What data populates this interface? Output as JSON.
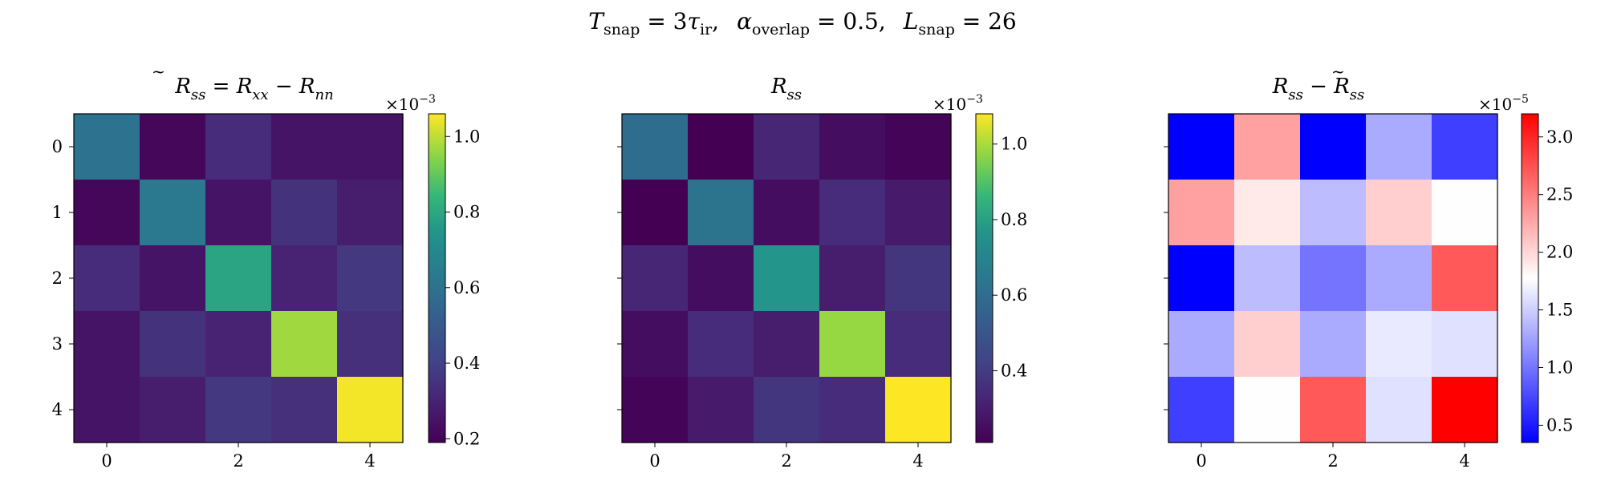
{
  "figure": {
    "suptitle_parts": {
      "T": "T",
      "snap": "snap",
      "eq1": " = 3",
      "tau": "τ",
      "ir": "ir",
      "comma1": ",",
      "alpha": "α",
      "overlap": "overlap",
      "eq2": " = 0.5,",
      "L": "L",
      "snap2": "snap",
      "eq3": " = 26"
    }
  },
  "chart_data": [
    {
      "type": "heatmap",
      "title_parts": {
        "R": "R",
        "tilde": "~",
        "sub_ss": "ss",
        "eq": " = ",
        "R2": "R",
        "sub_xx": "xx",
        "minus": " − ",
        "R3": "R",
        "sub_nn": "nn"
      },
      "title": "R̃_ss = R_xx − R_nn",
      "cmap": "viridis",
      "x_ticks": [
        "0",
        "2",
        "4"
      ],
      "y_ticks": [
        "0",
        "1",
        "2",
        "3",
        "4"
      ],
      "show_y_tick_labels": true,
      "vmin": 0.19,
      "vmax": 1.06,
      "colorbar_ticks": [
        "0.2",
        "0.4",
        "0.6",
        "0.8",
        "1.0"
      ],
      "colorbar_tick_values": [
        0.2,
        0.4,
        0.6,
        0.8,
        1.0
      ],
      "offset_label": "×10",
      "offset_exp": "−3",
      "values": [
        [
          0.6,
          0.21,
          0.33,
          0.25,
          0.25
        ],
        [
          0.21,
          0.63,
          0.25,
          0.35,
          0.28
        ],
        [
          0.33,
          0.25,
          0.79,
          0.3,
          0.37
        ],
        [
          0.25,
          0.35,
          0.3,
          0.97,
          0.34
        ],
        [
          0.25,
          0.28,
          0.37,
          0.34,
          1.05
        ]
      ]
    },
    {
      "type": "heatmap",
      "title_parts": {
        "R": "R",
        "sub_ss": "ss"
      },
      "title": "R_ss",
      "cmap": "viridis",
      "x_ticks": [
        "0",
        "2",
        "4"
      ],
      "y_ticks": [
        "0",
        "1",
        "2",
        "3",
        "4"
      ],
      "show_y_tick_labels": false,
      "vmin": 0.21,
      "vmax": 1.08,
      "colorbar_ticks": [
        "0.4",
        "0.6",
        "0.8",
        "1.0"
      ],
      "colorbar_tick_values": [
        0.4,
        0.6,
        0.8,
        1.0
      ],
      "offset_label": "×10",
      "offset_exp": "−3",
      "values": [
        [
          0.6,
          0.21,
          0.33,
          0.25,
          0.22
        ],
        [
          0.21,
          0.63,
          0.25,
          0.35,
          0.29
        ],
        [
          0.33,
          0.25,
          0.77,
          0.3,
          0.38
        ],
        [
          0.25,
          0.35,
          0.3,
          0.98,
          0.35
        ],
        [
          0.22,
          0.29,
          0.38,
          0.35,
          1.08
        ]
      ]
    },
    {
      "type": "heatmap",
      "title_parts": {
        "R": "R",
        "sub_ss": "ss",
        "minus": " − ",
        "R2": "R",
        "tilde": "~",
        "sub_ss2": "ss"
      },
      "title": "R_ss − R̃_ss",
      "cmap": "bwr",
      "x_ticks": [
        "0",
        "2",
        "4"
      ],
      "y_ticks": [
        "0",
        "1",
        "2",
        "3",
        "4"
      ],
      "show_y_tick_labels": false,
      "vmin": 0.35,
      "vmax": 3.2,
      "colorbar_ticks": [
        "0.5",
        "1.0",
        "1.5",
        "2.0",
        "2.5",
        "3.0"
      ],
      "colorbar_tick_values": [
        0.5,
        1.0,
        1.5,
        2.0,
        2.5,
        3.0
      ],
      "offset_label": "×10",
      "offset_exp": "−5",
      "values": [
        [
          0.35,
          2.3,
          0.35,
          1.3,
          0.7
        ],
        [
          2.3,
          1.9,
          1.4,
          2.05,
          1.78
        ],
        [
          0.35,
          1.4,
          1.0,
          1.3,
          2.7
        ],
        [
          1.3,
          2.05,
          1.3,
          1.65,
          1.6
        ],
        [
          0.7,
          1.78,
          2.7,
          1.6,
          3.2
        ]
      ]
    }
  ]
}
